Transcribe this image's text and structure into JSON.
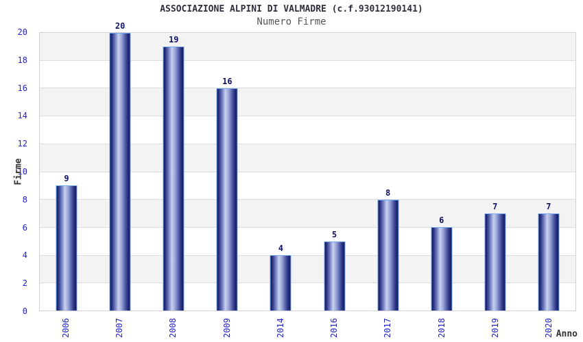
{
  "header": {
    "title": "ASSOCIAZIONE ALPINI DI VALMADRE (c.f.93012190141)",
    "subtitle": "Numero Firme"
  },
  "chart_data": {
    "type": "bar",
    "title": "ASSOCIAZIONE ALPINI DI VALMADRE (c.f.93012190141)",
    "subtitle": "Numero Firme",
    "categories": [
      "2006",
      "2007",
      "2008",
      "2009",
      "2014",
      "2016",
      "2017",
      "2018",
      "2019",
      "2020"
    ],
    "values": [
      9,
      20,
      19,
      16,
      4,
      5,
      8,
      6,
      7,
      7
    ],
    "xlabel": "Anno",
    "ylabel": "Firme",
    "ylim": [
      0,
      20
    ],
    "yticks": [
      0,
      2,
      4,
      6,
      8,
      10,
      12,
      14,
      16,
      18,
      20
    ],
    "grid": "horizontal gridlines every 2 units with alternating shaded bands",
    "legend": "none",
    "bar_value_labels_shown": true,
    "x_tick_rotation_deg": -90
  },
  "colors": {
    "tick_blue": "#2222cc",
    "value_navy": "#101066",
    "title_color": "#2e2e3e",
    "subtitle_color": "#565656",
    "axis_title_color": "#333333",
    "band_shade": "#f3f3f3",
    "grid_line": "#dcdcdc",
    "plot_border": "#d2d2d2",
    "bar_border": "#74aaee",
    "bar_dark": "#101961",
    "bar_mid": "#5f6cb4",
    "bar_light": "#c9d1f1"
  }
}
